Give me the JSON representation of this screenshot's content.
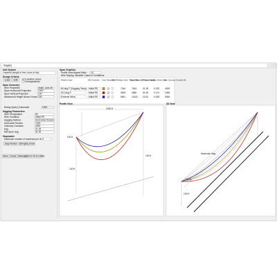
{
  "window": {
    "title": "Sagging"
  },
  "left": {
    "unit_label": "Unit System",
    "unit_value": "Imperial (length in feet, force in lbs)",
    "design_label": "Design Criteria",
    "design_buttons": [
      "Load",
      "Edit"
    ],
    "design_options": [
      "3 weather cases",
      "3 temperatures"
    ],
    "geometry_label": "Span Geometry",
    "geometry_fields": [
      {
        "label": "Wire Properties",
        "value": "drake_acsr.wir"
      },
      {
        "label": "Span Horizontal Projection",
        "value": "1000"
      },
      {
        "label": "Span Vertical Projection",
        "value": "100"
      },
      {
        "label": "Attachment Height Above Ground",
        "value": "100"
      }
    ],
    "ruling_label": "Ruling Span",
    "ruling_option": "Automatic",
    "ruling_value": "1000",
    "sagging_label": "Sagging Parameters",
    "sagging_fields": [
      {
        "label": "Wire Temperature",
        "value": "60"
      },
      {
        "label": "Wire Condition",
        "value": "Initial RS"
      },
      {
        "label": "Sagging Method",
        "value": "Horizontal Tension"
      },
      {
        "label": "Horizontal Tension",
        "value": "7344"
      },
      {
        "label": "Catenary Constant",
        "value": "4000"
      },
      {
        "label": "Sag",
        "value": "31.25"
      },
      {
        "label": "Mid Span Sag",
        "value": "31.25"
      }
    ],
    "stopwatch_label": "Stopwatch",
    "traverse_label": "Maximum number of traverses per line",
    "traverse_value": "3",
    "tools": [
      "Sag Tension",
      "Stringing Chart"
    ],
    "footer": [
      "Save",
      "Close",
      "Markup",
      "Send to PLS-CADD"
    ]
  },
  "graphics": {
    "label": "Span Graphics",
    "aspect_label": "Profile View Aspect Ratio",
    "aspect_value": "10",
    "display_label": "Wire Display, Weather Cases & Conditions",
    "headers": [
      "Weather Case",
      "Wire Condition",
      "Color",
      "Show Wire",
      "Label Wire",
      "Span Horiz. Tension (lbs)",
      "Span Maximum Tension (lbs)",
      "Mid Span Sag (ft)",
      "Span Stretch (%)",
      "Span Catenary Constant (ft)"
    ],
    "rows": [
      {
        "case": "60 deg F (Sagging Temp)",
        "condition": "Initial RS",
        "color": "#a8a000",
        "cells": [
          "7344",
          "7544",
          "31.25",
          "0.032",
          "4000"
        ]
      },
      {
        "case": "212 deg F",
        "condition": "Initial RS",
        "color": "#d01010",
        "cells": [
          "4549",
          "4680",
          "50.34",
          "0.121",
          "2484"
        ]
      },
      {
        "case": "Extreme Wind",
        "condition": "Initial RS",
        "color": "#2020c0",
        "cells": [
          "9841",
          "10102",
          "23.51",
          "0.053",
          "5360"
        ]
      }
    ]
  },
  "profile": {
    "title": "Profile View",
    "dims": [
      "1000 ft",
      "100 ft",
      "100 ft",
      "100 ft"
    ]
  },
  "view3d": {
    "title": "3D View",
    "dims": [
      "100 ft",
      "100 ft"
    ],
    "note": "Maximum Sag"
  }
}
